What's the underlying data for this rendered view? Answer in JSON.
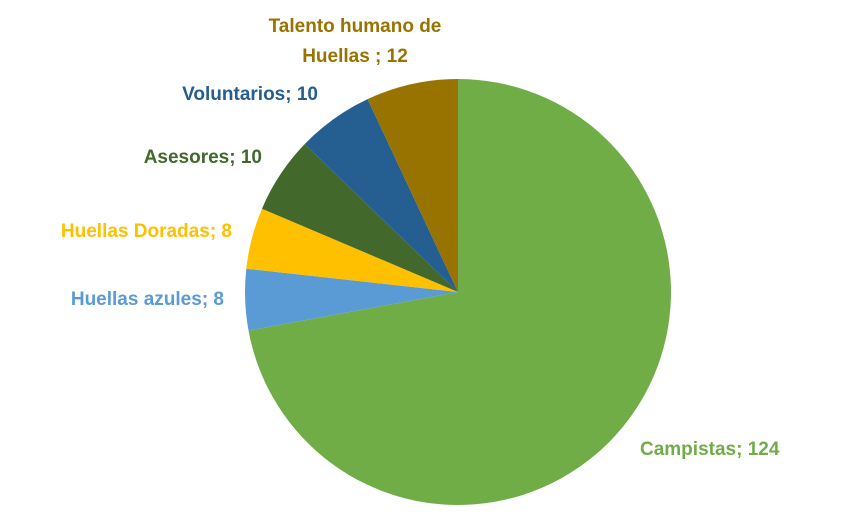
{
  "chart_data": {
    "type": "pie",
    "categories": [
      "Campistas",
      "Huellas azules",
      "Huellas Doradas",
      "Asesores",
      "Voluntarios",
      "Talento humano de Huellas"
    ],
    "values": [
      124,
      8,
      8,
      10,
      10,
      12
    ],
    "value_labels": [
      "; 124",
      "; 8",
      "; 8",
      "; 10",
      "; 10",
      " ; 12"
    ],
    "colors": [
      "#70ad47",
      "#5b9bd5",
      "#ffc000",
      "#43682b",
      "#255e91",
      "#997300"
    ]
  }
}
